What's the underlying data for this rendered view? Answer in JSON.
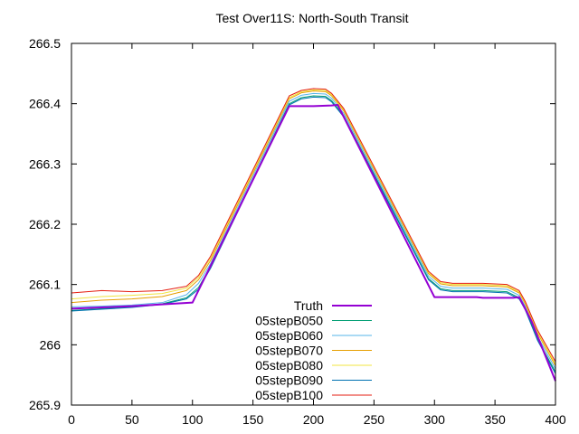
{
  "chart_data": {
    "type": "line",
    "title": "Test Over11S: North-South Transit",
    "xlabel": "",
    "ylabel": "",
    "xlim": [
      0,
      400
    ],
    "ylim": [
      265.9,
      266.5
    ],
    "xticks": [
      0,
      50,
      100,
      150,
      200,
      250,
      300,
      350,
      400
    ],
    "yticks": [
      265.9,
      266,
      266.1,
      266.2,
      266.3,
      266.4,
      266.5
    ],
    "xtick_labels": [
      "0",
      "50",
      "100",
      "150",
      "200",
      "250",
      "300",
      "350",
      "400"
    ],
    "ytick_labels": [
      "265.9",
      "266",
      "266.1",
      "266.2",
      "266.3",
      "266.4",
      "266.5"
    ],
    "grid": false,
    "legend_position": "bottom-center",
    "series": [
      {
        "name": "Truth",
        "color": "#9400d3",
        "width": 2,
        "x": [
          0,
          25,
          50,
          75,
          100,
          180,
          200,
          215,
          220,
          300,
          335,
          340,
          365,
          370,
          380,
          390,
          400
        ],
        "y": [
          266.06,
          266.062,
          266.064,
          266.067,
          266.07,
          266.396,
          266.396,
          266.397,
          266.398,
          266.079,
          266.079,
          266.078,
          266.078,
          266.079,
          266.04,
          265.99,
          265.94
        ]
      },
      {
        "name": "05stepB050",
        "color": "#009e73",
        "width": 1,
        "x": [
          0,
          25,
          50,
          75,
          95,
          105,
          115,
          180,
          190,
          200,
          210,
          215,
          225,
          295,
          305,
          315,
          340,
          360,
          370,
          375,
          385,
          400
        ],
        "y": [
          266.057,
          266.06,
          266.063,
          266.068,
          266.078,
          266.095,
          266.13,
          266.4,
          266.41,
          266.413,
          266.412,
          266.405,
          266.38,
          266.11,
          266.093,
          266.09,
          266.09,
          266.088,
          266.078,
          266.06,
          266.01,
          265.955
        ]
      },
      {
        "name": "05stepB060",
        "color": "#56b4e9",
        "width": 1,
        "x": [
          0,
          25,
          50,
          75,
          95,
          105,
          115,
          180,
          190,
          200,
          210,
          215,
          225,
          295,
          305,
          315,
          340,
          360,
          370,
          375,
          385,
          400
        ],
        "y": [
          266.063,
          266.064,
          266.066,
          266.07,
          266.083,
          266.102,
          266.135,
          266.404,
          266.414,
          266.417,
          266.416,
          266.409,
          266.384,
          266.114,
          266.097,
          266.094,
          266.094,
          266.092,
          266.082,
          266.064,
          266.015,
          265.96
        ]
      },
      {
        "name": "05stepB070",
        "color": "#e69f00",
        "width": 1,
        "x": [
          0,
          25,
          50,
          75,
          95,
          105,
          115,
          180,
          190,
          200,
          210,
          215,
          225,
          295,
          305,
          315,
          340,
          360,
          370,
          375,
          385,
          400
        ],
        "y": [
          266.07,
          266.074,
          266.076,
          266.08,
          266.09,
          266.108,
          266.14,
          266.408,
          266.418,
          266.421,
          266.42,
          266.413,
          266.388,
          266.118,
          266.101,
          266.098,
          266.098,
          266.096,
          266.086,
          266.068,
          266.02,
          265.965
        ]
      },
      {
        "name": "05stepB080",
        "color": "#f0e442",
        "width": 1,
        "x": [
          0,
          25,
          50,
          75,
          95,
          105,
          115,
          180,
          190,
          200,
          210,
          215,
          225,
          295,
          305,
          315,
          340,
          360,
          370,
          375,
          385,
          400
        ],
        "y": [
          266.076,
          266.08,
          266.082,
          266.085,
          266.094,
          266.112,
          266.144,
          266.41,
          266.42,
          266.423,
          266.422,
          266.415,
          266.39,
          266.12,
          266.103,
          266.1,
          266.1,
          266.098,
          266.088,
          266.07,
          266.022,
          265.968
        ]
      },
      {
        "name": "05stepB090",
        "color": "#0072b2",
        "width": 1,
        "x": [
          0,
          25,
          50,
          75,
          95,
          105,
          115,
          180,
          190,
          200,
          210,
          215,
          225,
          295,
          305,
          315,
          340,
          360,
          370,
          375,
          385,
          400
        ],
        "y": [
          266.056,
          266.059,
          266.062,
          266.067,
          266.076,
          266.092,
          266.127,
          266.398,
          266.408,
          266.411,
          266.41,
          266.403,
          266.378,
          266.108,
          266.091,
          266.088,
          266.088,
          266.086,
          266.076,
          266.058,
          266.008,
          265.952
        ]
      },
      {
        "name": "05stepB100",
        "color": "#e51e10",
        "width": 1,
        "x": [
          0,
          25,
          50,
          75,
          95,
          105,
          115,
          180,
          190,
          200,
          210,
          215,
          225,
          295,
          305,
          315,
          340,
          360,
          370,
          375,
          385,
          400
        ],
        "y": [
          266.086,
          266.09,
          266.088,
          266.09,
          266.097,
          266.115,
          266.147,
          266.413,
          266.422,
          266.425,
          266.424,
          266.417,
          266.392,
          266.122,
          266.105,
          266.102,
          266.102,
          266.1,
          266.09,
          266.072,
          266.025,
          265.972
        ]
      }
    ]
  }
}
